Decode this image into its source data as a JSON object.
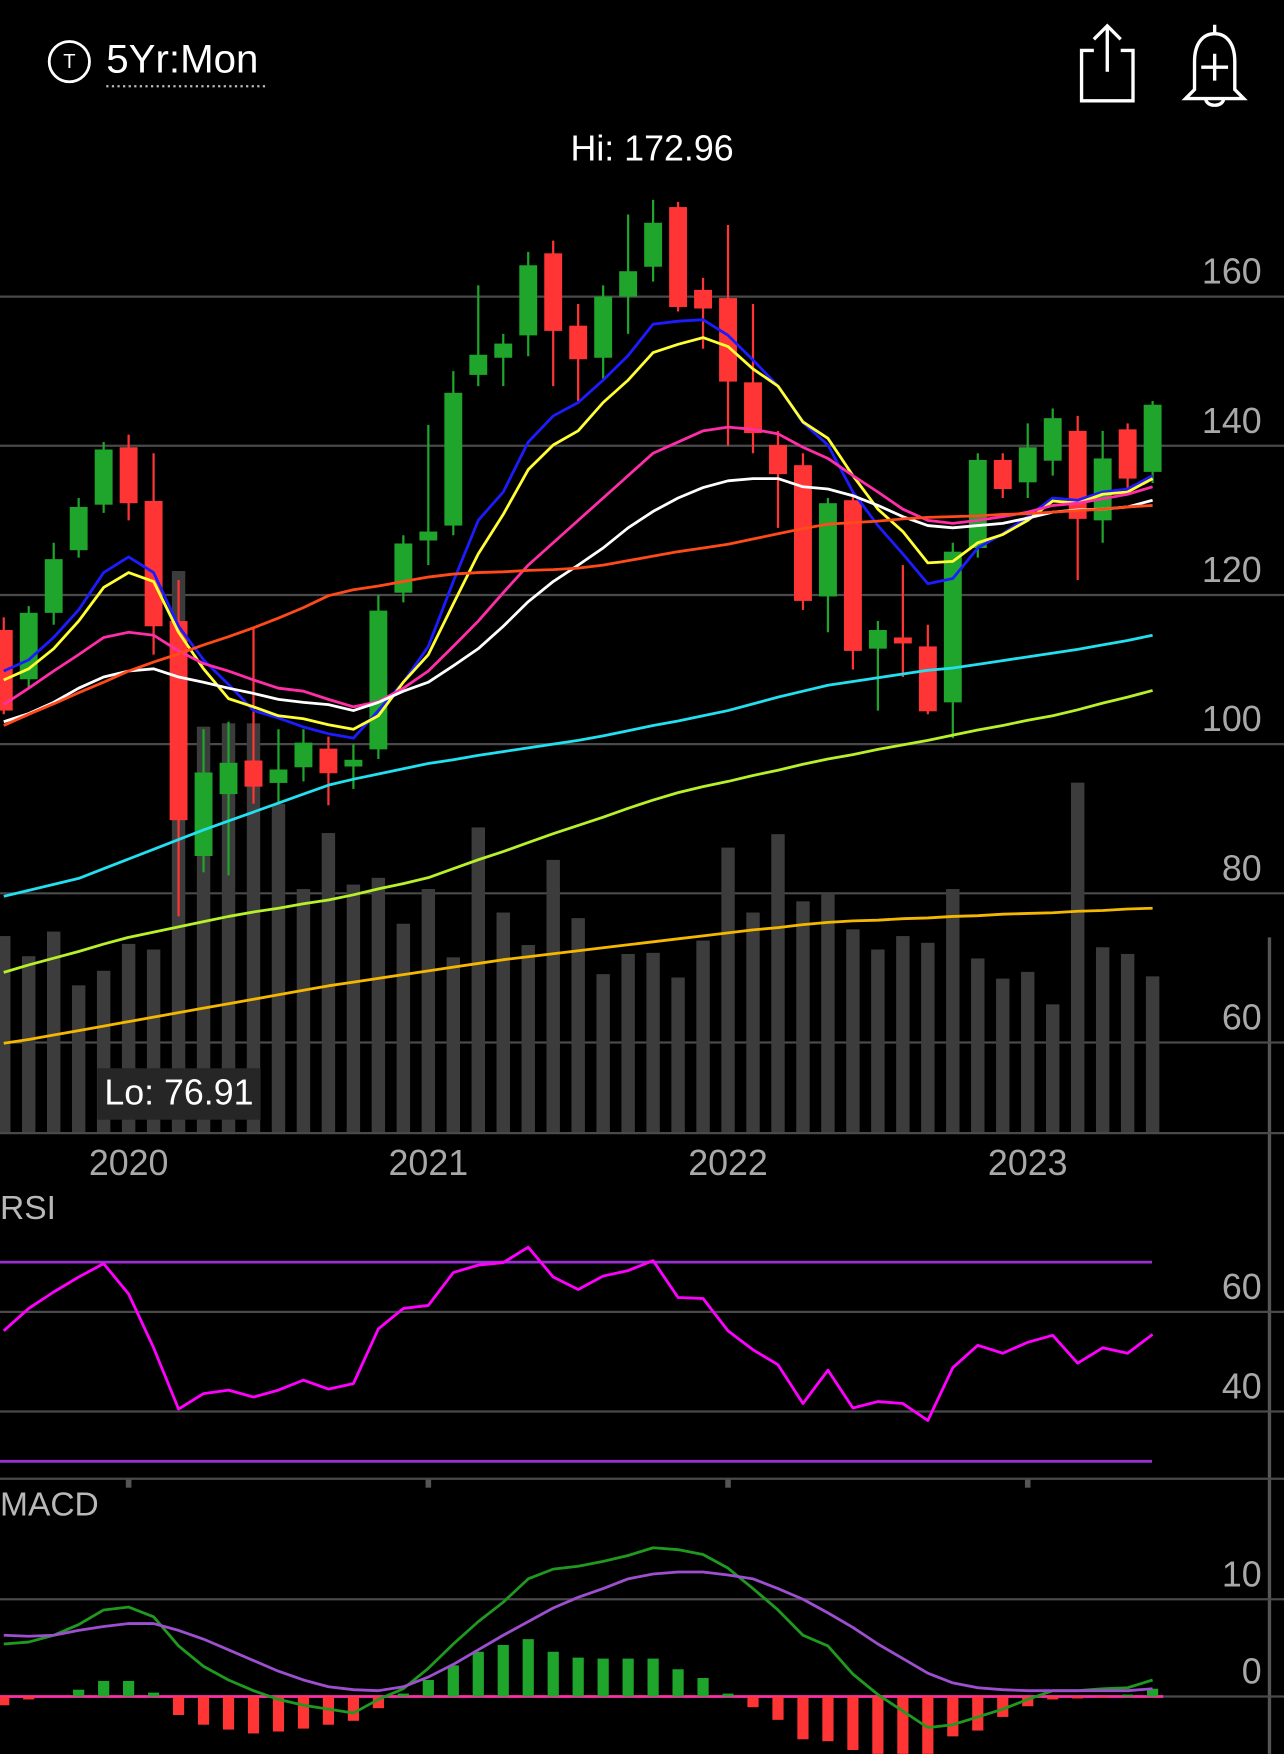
{
  "header": {
    "timeframe": "5Yr:Mon"
  },
  "chart_data": [
    {
      "type": "candlestick",
      "annotations": [
        "Hi: 172.96",
        "Lo: 76.91"
      ],
      "categories": [
        null,
        null,
        null,
        null,
        null,
        "2020",
        null,
        null,
        null,
        null,
        null,
        null,
        null,
        null,
        null,
        null,
        null,
        "2021",
        null,
        null,
        null,
        null,
        null,
        null,
        null,
        null,
        null,
        null,
        null,
        "2022",
        null,
        null,
        null,
        null,
        null,
        null,
        null,
        null,
        null,
        null,
        null,
        "2023",
        null,
        null,
        null,
        null,
        null
      ],
      "open": [
        115.3,
        108.7,
        117.6,
        126,
        132.1,
        139.8,
        132.6,
        116.5,
        85,
        93.3,
        97.8,
        94.8,
        96.9,
        99.4,
        97.0,
        99.3,
        120.3,
        127.3,
        129.3,
        149.5,
        151.8,
        154.8,
        165.8,
        156.1,
        151.8,
        160,
        164,
        172,
        160.9,
        159.8,
        148.5,
        140.1,
        137.4,
        119.8,
        132.7,
        112.8,
        114.3,
        113.1,
        105.6,
        126.3,
        138.1,
        135.1,
        138,
        142,
        130,
        142.2,
        136.5
      ],
      "high": [
        117,
        118.5,
        127,
        133,
        140.5,
        141.5,
        139,
        122,
        102,
        103,
        115.5,
        102,
        102,
        101,
        100,
        120,
        128,
        142.8,
        150,
        161.5,
        155,
        166,
        167.5,
        159,
        161.5,
        171,
        172.96,
        172.7,
        162.5,
        169.6,
        159,
        142,
        139,
        133,
        134,
        116.5,
        124,
        116,
        127,
        139,
        139,
        143,
        145,
        144,
        142,
        143,
        146
      ],
      "low": [
        104,
        107.5,
        116,
        125,
        131,
        130,
        112,
        76.91,
        82.8,
        82.4,
        92,
        92,
        95,
        91.8,
        94,
        98,
        119,
        124,
        128,
        148,
        148,
        152,
        148,
        146,
        149,
        155,
        162,
        158,
        153,
        140,
        139,
        129,
        118,
        115,
        110,
        104.5,
        109,
        104,
        100.8,
        125,
        133,
        133,
        136,
        122,
        127,
        134,
        135
      ],
      "close": [
        104.5,
        117.6,
        124.8,
        131.8,
        139.5,
        132.3,
        115.8,
        89.8,
        96.2,
        97.5,
        94.3,
        96.6,
        100.2,
        96.1,
        97.9,
        117.9,
        126.9,
        128.5,
        147.1,
        152.2,
        153.7,
        164.2,
        155.4,
        151.6,
        160,
        163.4,
        169.9,
        158.6,
        158.4,
        148.6,
        141.7,
        136.2,
        119.2,
        132.3,
        112.5,
        115.3,
        113.5,
        104.4,
        125.8,
        138.1,
        134.2,
        139.8,
        143.7,
        130.2,
        138.3,
        135.6,
        145.5
      ],
      "up_color": "#1fa52b",
      "down_color": "#ff3535",
      "volume": [
        175,
        157,
        179,
        131,
        144,
        168,
        163,
        501,
        362,
        365,
        365,
        293,
        217,
        267,
        221,
        227,
        186,
        217,
        156,
        272,
        196,
        167,
        243,
        191,
        141,
        159,
        160,
        138,
        171,
        254,
        196,
        266,
        206,
        213,
        181,
        163,
        175,
        169,
        217,
        155,
        137,
        143,
        114,
        312,
        165,
        159,
        139
      ],
      "volume_color": "#3c3c3c",
      "series": [
        {
          "color": "#1c1cff",
          "values": [
            109.8,
            111.3,
            114.3,
            118.0,
            123.0,
            125.1,
            123.0,
            115.8,
            111.3,
            108.0,
            104.5,
            103.5,
            102.3,
            101.4,
            100.8,
            104.5,
            108.3,
            113.1,
            121.8,
            130.0,
            133.8,
            140.5,
            144.0,
            145.8,
            148.8,
            152.1,
            156.3,
            156.7,
            156.9,
            154.8,
            151.5,
            148.0,
            143.1,
            140.1,
            133.8,
            129.3,
            125.5,
            121.5,
            122.2,
            126.3,
            128.2,
            130.5,
            133.0,
            132.7,
            133.8,
            134.2,
            136.0
          ]
        },
        {
          "color": "#ffff33",
          "values": [
            108.6,
            110.1,
            112.8,
            116.5,
            121.0,
            123.0,
            121.8,
            115.0,
            110.1,
            106.1,
            105.0,
            103.8,
            103.4,
            102.6,
            102.0,
            103.8,
            108.3,
            112.0,
            118.8,
            125.5,
            130.8,
            136.8,
            140.1,
            142.0,
            145.8,
            148.8,
            152.5,
            153.6,
            154.5,
            153.3,
            150.3,
            148.0,
            143.2,
            141.0,
            136.0,
            131.5,
            128.5,
            124.3,
            124.5,
            127.0,
            128.1,
            130.0,
            132.6,
            132.3,
            133.5,
            133.8,
            135.6
          ]
        },
        {
          "color": "#ff2ea8",
          "values": [
            105.3,
            107.5,
            109.8,
            112.0,
            114.3,
            115.0,
            114.6,
            112.5,
            110.8,
            109.8,
            108.6,
            107.5,
            107.1,
            106.0,
            105.0,
            105.7,
            107.5,
            109.8,
            113.1,
            116.5,
            120.3,
            124.0,
            127.0,
            130.0,
            133.0,
            136.0,
            139.0,
            140.5,
            142.0,
            142.5,
            142.2,
            141.6,
            139.8,
            138.3,
            136.0,
            133.8,
            131.5,
            130.0,
            129.6,
            130.0,
            130.5,
            131.1,
            132.0,
            132.3,
            132.9,
            133.5,
            134.5
          ]
        },
        {
          "color": "#ffffff",
          "values": [
            103.0,
            104.1,
            105.6,
            107.5,
            109.0,
            109.8,
            110.1,
            109.0,
            108.3,
            107.5,
            106.8,
            106.0,
            105.6,
            105.3,
            104.5,
            105.6,
            107.1,
            108.3,
            110.5,
            112.8,
            115.8,
            119.1,
            121.8,
            124.0,
            126.3,
            129.0,
            131.2,
            133.0,
            134.4,
            135.3,
            135.6,
            135.6,
            134.5,
            134.2,
            133.3,
            132.0,
            130.5,
            129.3,
            129.0,
            129.3,
            129.6,
            130.3,
            131.1,
            131.4,
            131.5,
            131.8,
            132.7
          ]
        },
        {
          "color": "#ff4a1a",
          "values": [
            102.5,
            104.0,
            105.4,
            106.9,
            108.3,
            109.8,
            111.0,
            112.1,
            113.3,
            114.4,
            115.6,
            116.9,
            118.3,
            119.9,
            120.7,
            121.2,
            121.8,
            122.4,
            122.8,
            123.0,
            123.1,
            123.3,
            123.4,
            123.6,
            124.0,
            124.6,
            125.2,
            125.8,
            126.3,
            126.8,
            127.5,
            128.2,
            128.9,
            129.5,
            129.7,
            129.9,
            130.2,
            130.4,
            130.5,
            130.6,
            130.8,
            130.9,
            131.1,
            131.3,
            131.5,
            131.8,
            132.0
          ]
        },
        {
          "color": "#22e0f0",
          "values": [
            79.6,
            80.4,
            81.2,
            82.0,
            83.3,
            84.6,
            85.9,
            87.2,
            88.5,
            89.7,
            90.9,
            92.1,
            93.3,
            94.5,
            95.3,
            96.0,
            96.7,
            97.4,
            97.9,
            98.5,
            99.0,
            99.5,
            100.0,
            100.5,
            101.1,
            101.8,
            102.5,
            103.1,
            103.8,
            104.5,
            105.4,
            106.3,
            107.1,
            107.9,
            108.4,
            108.9,
            109.4,
            109.9,
            110.2,
            110.7,
            111.2,
            111.7,
            112.2,
            112.7,
            113.3,
            113.9,
            114.6
          ]
        },
        {
          "color": "#b8f02a",
          "values": [
            69.4,
            70.4,
            71.3,
            72.2,
            73.2,
            74.1,
            74.8,
            75.5,
            76.2,
            76.9,
            77.5,
            78.0,
            78.6,
            79.1,
            79.8,
            80.6,
            81.3,
            82.1,
            83.3,
            84.5,
            85.6,
            86.8,
            88.0,
            89.1,
            90.2,
            91.4,
            92.5,
            93.5,
            94.3,
            95.0,
            95.8,
            96.5,
            97.3,
            98.0,
            98.6,
            99.3,
            99.9,
            100.5,
            101.2,
            101.9,
            102.5,
            103.2,
            103.8,
            104.6,
            105.5,
            106.3,
            107.2
          ]
        },
        {
          "color": "#f5b800",
          "values": [
            59.9,
            60.4,
            61.0,
            61.6,
            62.2,
            62.8,
            63.4,
            64.0,
            64.6,
            65.2,
            65.8,
            66.4,
            67.0,
            67.6,
            68.1,
            68.6,
            69.1,
            69.6,
            70.1,
            70.6,
            71.1,
            71.5,
            71.9,
            72.3,
            72.7,
            73.1,
            73.5,
            73.9,
            74.3,
            74.7,
            75.1,
            75.4,
            75.8,
            76.1,
            76.3,
            76.4,
            76.6,
            76.7,
            76.9,
            77.0,
            77.2,
            77.3,
            77.4,
            77.6,
            77.7,
            77.9,
            78.0
          ]
        }
      ],
      "ylim": [
        48,
        184
      ],
      "yticks": [
        60,
        80,
        100,
        120,
        140,
        160
      ],
      "grid": true
    },
    {
      "type": "line",
      "title": "RSI",
      "series": [
        {
          "color": "#ff00ff",
          "values": [
            56.2,
            60.7,
            64.0,
            67.0,
            69.7,
            63.6,
            52.8,
            40.5,
            43.6,
            44.3,
            42.9,
            44.3,
            46.3,
            44.5,
            45.6,
            56.6,
            60.7,
            61.3,
            67.9,
            69.4,
            69.9,
            73.0,
            67.0,
            64.5,
            67.2,
            68.3,
            70.3,
            62.9,
            62.7,
            56.2,
            52.4,
            49.4,
            41.6,
            48.3,
            40.7,
            42.0,
            41.6,
            38.2,
            48.8,
            53.3,
            51.7,
            53.9,
            55.3,
            49.7,
            52.8,
            51.7,
            55.5
          ]
        }
      ],
      "hlines": [
        30,
        70
      ],
      "hline_color": "#9b30d0",
      "ylim": [
        26.5,
        83.1
      ],
      "yticks": [
        40,
        60
      ],
      "grid": true
    },
    {
      "type": "line",
      "title": "MACD",
      "series": [
        {
          "color": "#1f9a1f",
          "values": [
            5.4,
            5.6,
            6.3,
            7.4,
            8.9,
            9.2,
            8.2,
            5.2,
            3.1,
            1.7,
            0.6,
            -0.3,
            -0.9,
            -1.3,
            -1.7,
            -0.3,
            0.8,
            2.9,
            5.4,
            7.7,
            9.7,
            12.1,
            13.1,
            13.4,
            13.9,
            14.5,
            15.3,
            15.1,
            14.6,
            13.2,
            11.1,
            8.9,
            6.3,
            5.2,
            2.3,
            0.2,
            -1.5,
            -3.2,
            -2.9,
            -2.1,
            -1.3,
            -0.3,
            0.6,
            0.6,
            0.8,
            0.9,
            1.7
          ]
        },
        {
          "color": "#9d4fd0",
          "values": [
            6.3,
            6.2,
            6.3,
            6.8,
            7.2,
            7.5,
            7.5,
            6.8,
            5.9,
            4.8,
            3.7,
            2.6,
            1.7,
            1.0,
            0.7,
            0.6,
            1.0,
            2.0,
            3.3,
            4.8,
            6.3,
            7.7,
            9.1,
            10.2,
            11.1,
            12.1,
            12.6,
            12.8,
            12.8,
            12.5,
            12.1,
            11.1,
            10.0,
            8.6,
            7.1,
            5.4,
            3.9,
            2.4,
            1.4,
            0.9,
            0.7,
            0.6,
            0.6,
            0.6,
            0.6,
            0.6,
            0.8
          ]
        }
      ],
      "histogram": [
        -0.9,
        -0.3,
        0,
        0.7,
        1.6,
        1.6,
        0.4,
        -1.9,
        -2.9,
        -3.4,
        -3.8,
        -3.6,
        -3.3,
        -2.9,
        -2.5,
        -1.2,
        0.3,
        1.7,
        3.2,
        4.6,
        5.3,
        5.9,
        4.6,
        4.0,
        3.9,
        3.9,
        3.9,
        2.8,
        1.9,
        0.3,
        -1.1,
        -2.4,
        -4.4,
        -4.6,
        -5.5,
        -5.9,
        -5.9,
        -5.9,
        -4.1,
        -3.5,
        -2.1,
        -1.0,
        -0.3,
        -0.2,
        -0.1,
        0.2,
        0.8
      ],
      "up_color": "#1fa52b",
      "down_color": "#ff3535",
      "zero_color": "#ff2ea8",
      "ylim": [
        -5.9,
        20.9
      ],
      "yticks": [
        0,
        10
      ],
      "grid": true
    }
  ]
}
